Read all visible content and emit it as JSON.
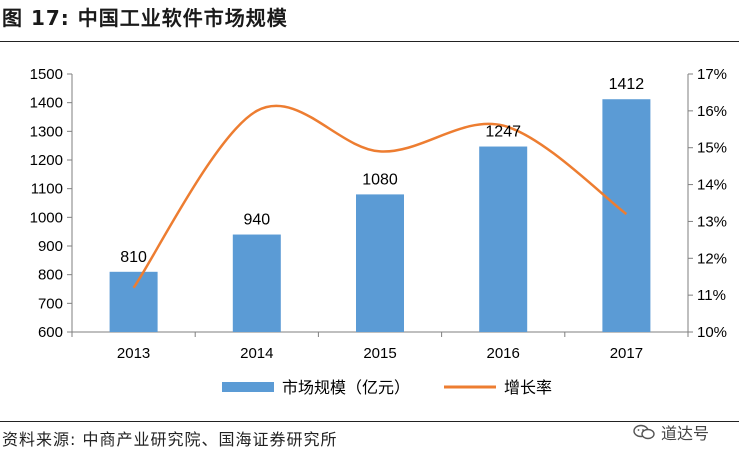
{
  "header": {
    "title": "图 17:  中国工业软件市场规模"
  },
  "footer": {
    "source": "资料来源:  中商产业研究院、国海证券研究所",
    "watermark": "道达号"
  },
  "colors": {
    "bar": "#5b9bd5",
    "line": "#ed7d31",
    "axis": "#7f7f7f",
    "text": "#000000"
  },
  "chart_data": {
    "type": "bar",
    "categories": [
      "2013",
      "2014",
      "2015",
      "2016",
      "2017"
    ],
    "series": [
      {
        "name": "市场规模（亿元）",
        "type": "bar",
        "axis": "left",
        "values": [
          810,
          940,
          1080,
          1247,
          1412
        ],
        "data_labels": [
          "810",
          "940",
          "1080",
          "1247",
          "1412"
        ]
      },
      {
        "name": "增长率",
        "type": "line",
        "smooth": true,
        "axis": "right",
        "values": [
          11.2,
          16.0,
          14.9,
          15.6,
          13.2
        ]
      }
    ],
    "y_left": {
      "lim": [
        600,
        1500
      ],
      "ticks": [
        600,
        700,
        800,
        900,
        1000,
        1100,
        1200,
        1300,
        1400,
        1500
      ]
    },
    "y_right": {
      "lim": [
        10,
        17
      ],
      "ticks": [
        "10%",
        "11%",
        "12%",
        "13%",
        "14%",
        "15%",
        "16%",
        "17%"
      ]
    },
    "legend": "bottom",
    "grid": false
  }
}
